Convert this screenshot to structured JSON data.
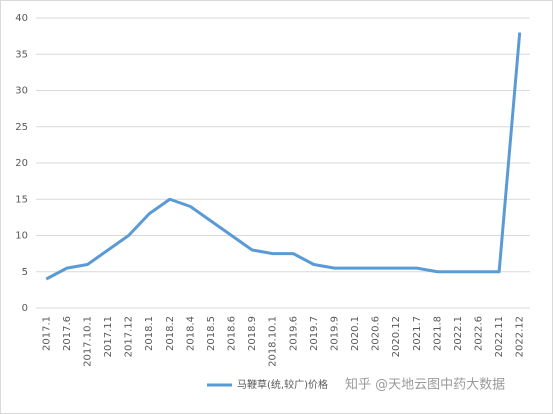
{
  "chart_data": {
    "type": "line",
    "categories": [
      "2017.1",
      "2017.6",
      "2017.10.1",
      "2017.11",
      "2017.12",
      "2018.1",
      "2018.2",
      "2018.4",
      "2018.5",
      "2018.6",
      "2018.9",
      "2018.10.1",
      "2019.6",
      "2019.7",
      "2019.9",
      "2020.1",
      "2020.6",
      "2020.12",
      "2021.7",
      "2021.8",
      "2022.1",
      "2022.6",
      "2022.11",
      "2022.12"
    ],
    "series": [
      {
        "name": "马鞭草(统,较广)价格",
        "color": "#5b9bd5",
        "values": [
          4,
          5.5,
          6,
          8,
          10,
          13,
          15,
          14,
          12,
          10,
          8,
          7.5,
          7.5,
          6,
          5.5,
          5.5,
          5.5,
          5.5,
          5.5,
          5,
          5,
          5,
          5,
          38
        ]
      }
    ],
    "ylim": [
      0,
      40
    ],
    "yticks": [
      0,
      5,
      10,
      15,
      20,
      25,
      30,
      35,
      40
    ],
    "grid": true,
    "legend": "bottom",
    "watermark": "知乎 @天地云图中药大数据"
  }
}
